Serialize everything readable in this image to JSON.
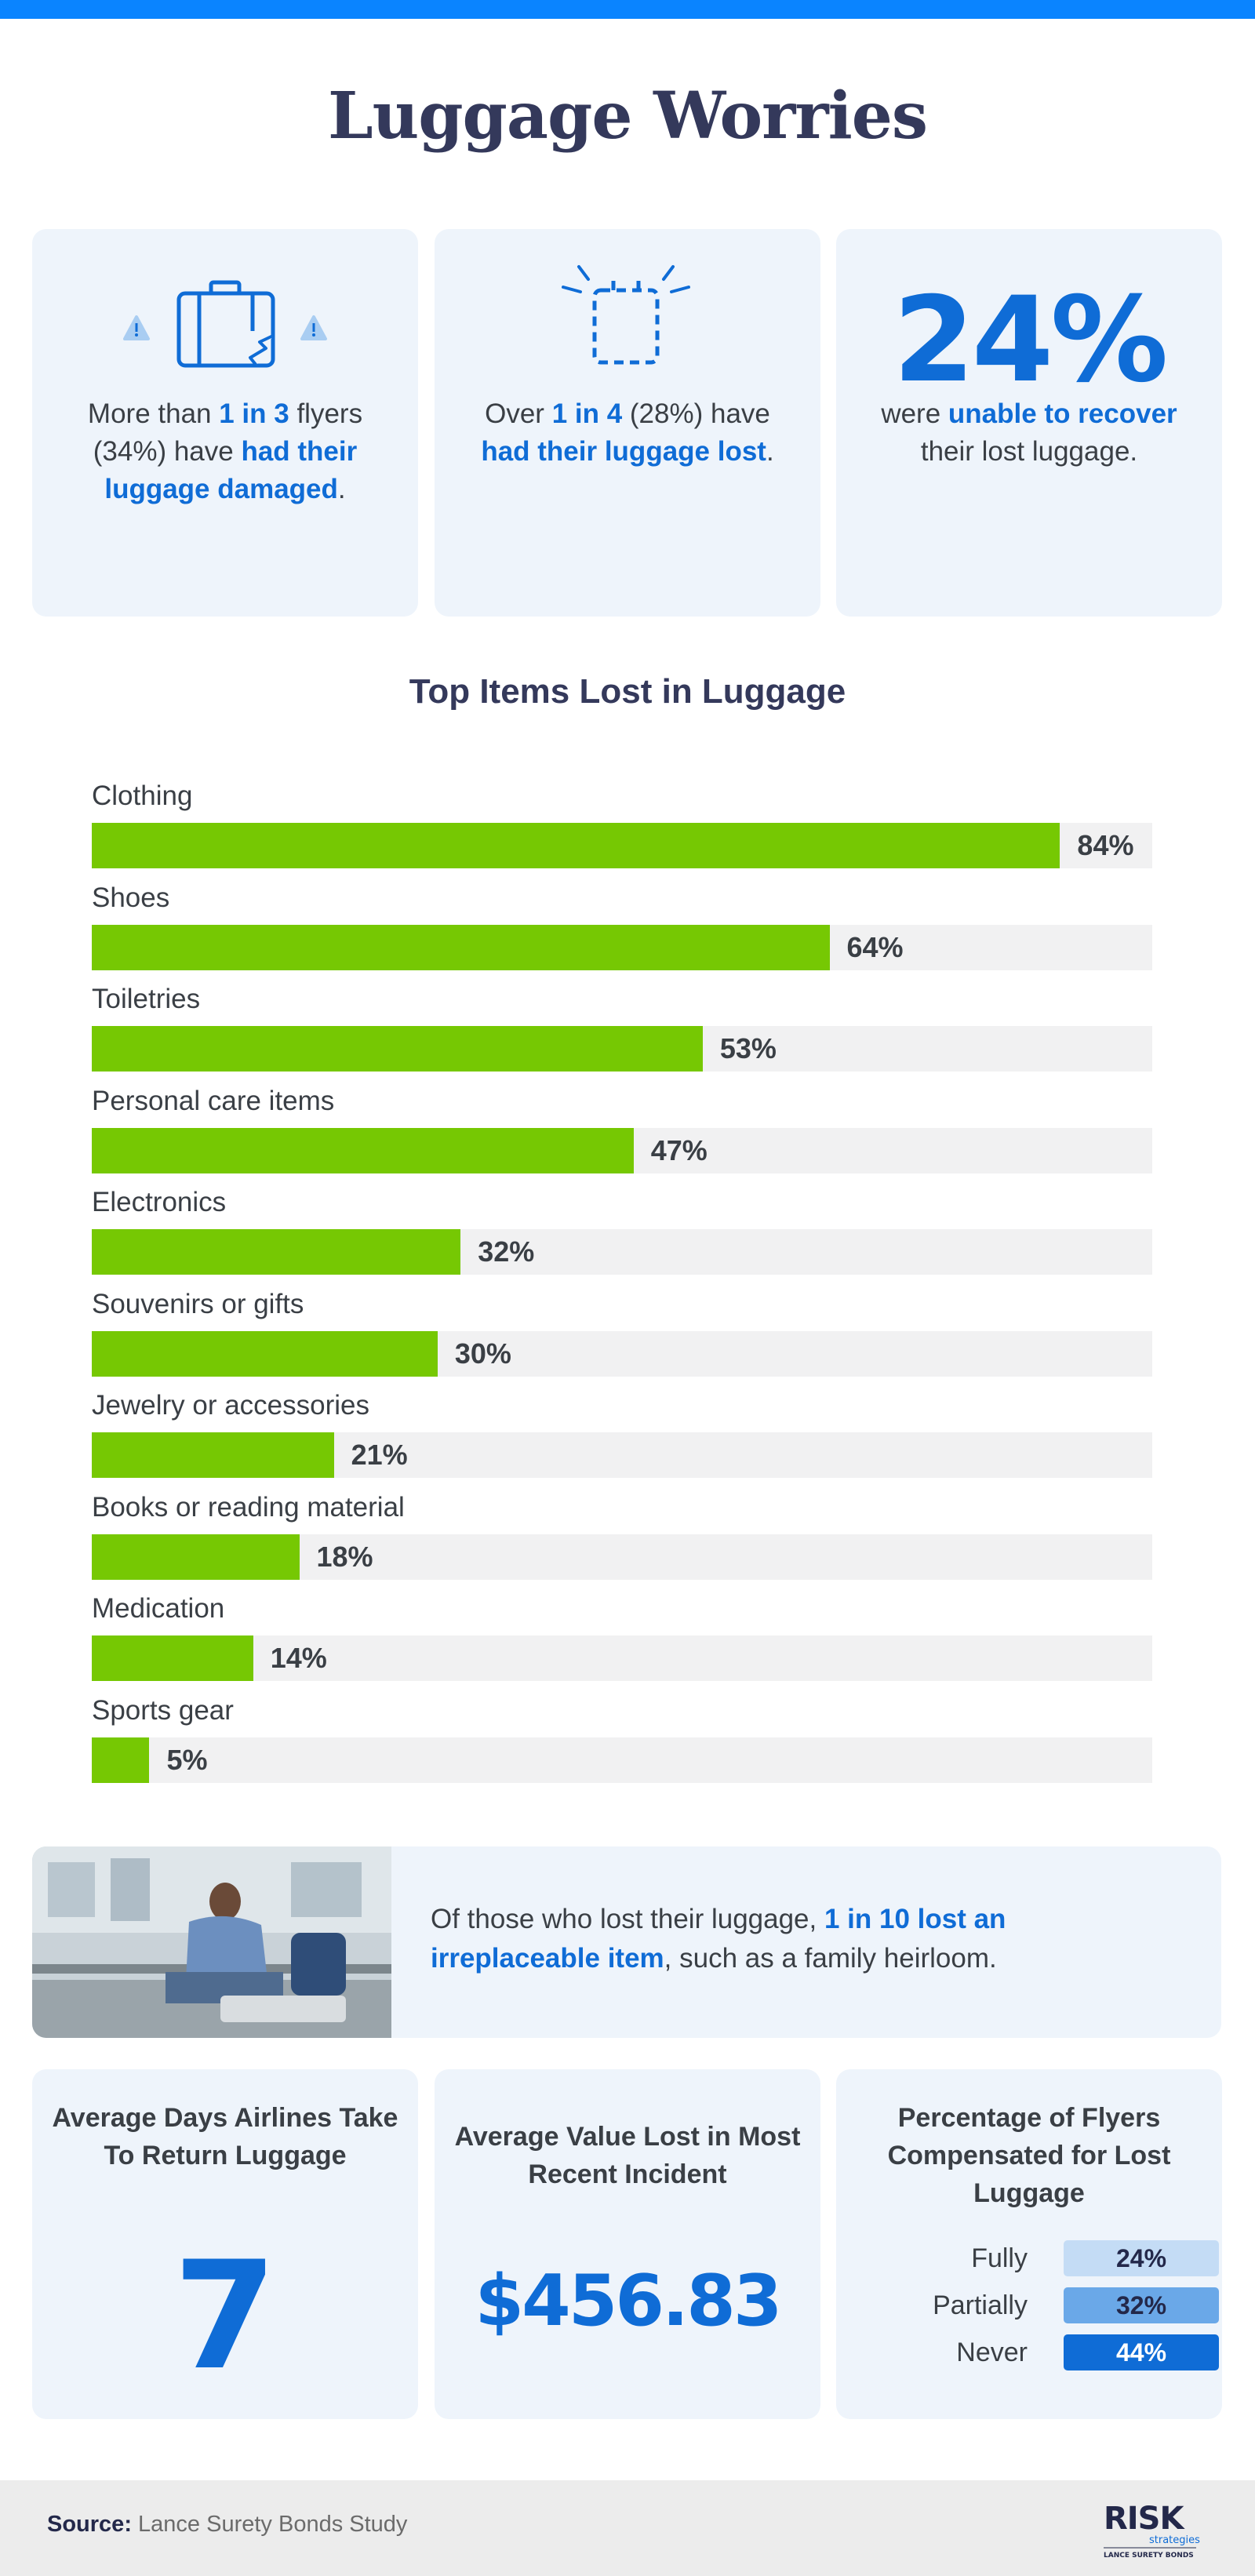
{
  "header": {
    "title": "Luggage Worries"
  },
  "stats": [
    {
      "pre": "More than ",
      "hl1": "1 in 3",
      "mid": " flyers (34%) have ",
      "hl2": "had their luggage damaged",
      "post": "."
    },
    {
      "pre": "Over ",
      "hl1": "1 in 4",
      "mid": " (28%) have ",
      "hl2": "had their luggage lost",
      "post": "."
    },
    {
      "big": "24%",
      "pre": "were ",
      "hl2": "unable to recover",
      "post": " their lost luggage."
    }
  ],
  "icons": [
    "warning-icon",
    "damaged-suitcase-icon",
    "missing-suitcase-icon"
  ],
  "colors": {
    "accent": "#0f6cd6",
    "bar": "#76c803",
    "track": "#f1f1f2",
    "card": "#eef4fb",
    "top_bar": "#0a84ff"
  },
  "chart_data": {
    "type": "bar",
    "orientation": "horizontal",
    "title": "Top Items Lost in Luggage",
    "categories": [
      "Clothing",
      "Shoes",
      "Toiletries",
      "Personal care items",
      "Electronics",
      "Souvenirs or gifts",
      "Jewelry or accessories",
      "Books or reading material",
      "Medication",
      "Sports gear"
    ],
    "values": [
      84,
      64,
      53,
      47,
      32,
      30,
      21,
      18,
      14,
      5
    ],
    "value_labels": [
      "84%",
      "64%",
      "53%",
      "47%",
      "32%",
      "30%",
      "21%",
      "18%",
      "14%",
      "5%"
    ],
    "xlim": [
      0,
      92
    ],
    "unit": "%"
  },
  "callout": {
    "pre": "Of those who lost their luggage, ",
    "hl": "1 in 10 lost an irreplaceable item",
    "post": ", such as a family heirloom."
  },
  "days": {
    "title": "Average Days Airlines Take To Return Luggage",
    "value": "7"
  },
  "value_lost": {
    "title": "Average Value Lost in Most Recent Incident",
    "value": "$456.83"
  },
  "compensation": {
    "title": "Percentage of Flyers Compensated for Lost Luggage",
    "rows": [
      {
        "label": "Fully",
        "value": "24%"
      },
      {
        "label": "Partially",
        "value": "32%"
      },
      {
        "label": "Never",
        "value": "44%"
      }
    ]
  },
  "footer": {
    "source_label": "Source:",
    "source_text": " Lance Surety Bonds Study",
    "logo_main": "RISK",
    "logo_sub": "strategies",
    "logo_tag": "LANCE SURETY BONDS"
  }
}
